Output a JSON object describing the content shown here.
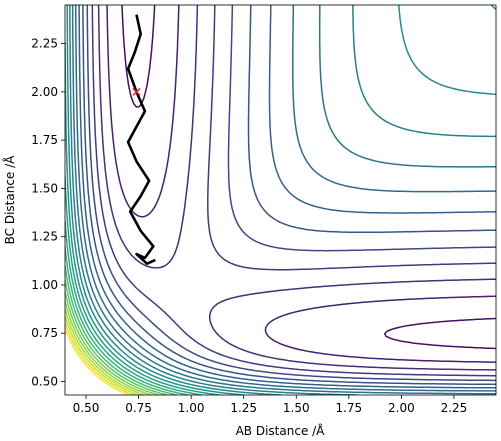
{
  "chart_data": {
    "type": "contour",
    "title": "",
    "xlabel": "AB Distance /Å",
    "ylabel": "BC Distance /Å",
    "xlim": [
      0.4,
      2.45
    ],
    "ylim": [
      0.43,
      2.45
    ],
    "xticks": [
      "0.50",
      "0.75",
      "1.00",
      "1.25",
      "1.50",
      "1.75",
      "2.00",
      "2.25"
    ],
    "yticks": [
      "0.50",
      "0.75",
      "1.00",
      "1.25",
      "1.50",
      "1.75",
      "2.00",
      "2.25"
    ],
    "xtick_values": [
      0.5,
      0.75,
      1.0,
      1.25,
      1.5,
      1.75,
      2.0,
      2.25
    ],
    "ytick_values": [
      0.5,
      0.75,
      1.0,
      1.25,
      1.5,
      1.75,
      2.0,
      2.25
    ],
    "colormap": "viridis",
    "contour_levels": 24,
    "trajectory": {
      "color": "#000000",
      "start": {
        "x": 0.74,
        "y": 2.0
      },
      "points": [
        [
          0.74,
          2.4
        ],
        [
          0.76,
          2.3
        ],
        [
          0.73,
          2.2
        ],
        [
          0.7,
          2.12
        ],
        [
          0.74,
          2.0
        ],
        [
          0.78,
          1.9
        ],
        [
          0.74,
          1.82
        ],
        [
          0.7,
          1.74
        ],
        [
          0.74,
          1.64
        ],
        [
          0.8,
          1.54
        ],
        [
          0.76,
          1.46
        ],
        [
          0.71,
          1.38
        ],
        [
          0.76,
          1.28
        ],
        [
          0.82,
          1.2
        ],
        [
          0.78,
          1.14
        ],
        [
          0.74,
          1.16
        ],
        [
          0.79,
          1.11
        ],
        [
          0.83,
          1.13
        ]
      ]
    },
    "start_marker": {
      "symbol": "x",
      "color": "#d62728"
    }
  }
}
